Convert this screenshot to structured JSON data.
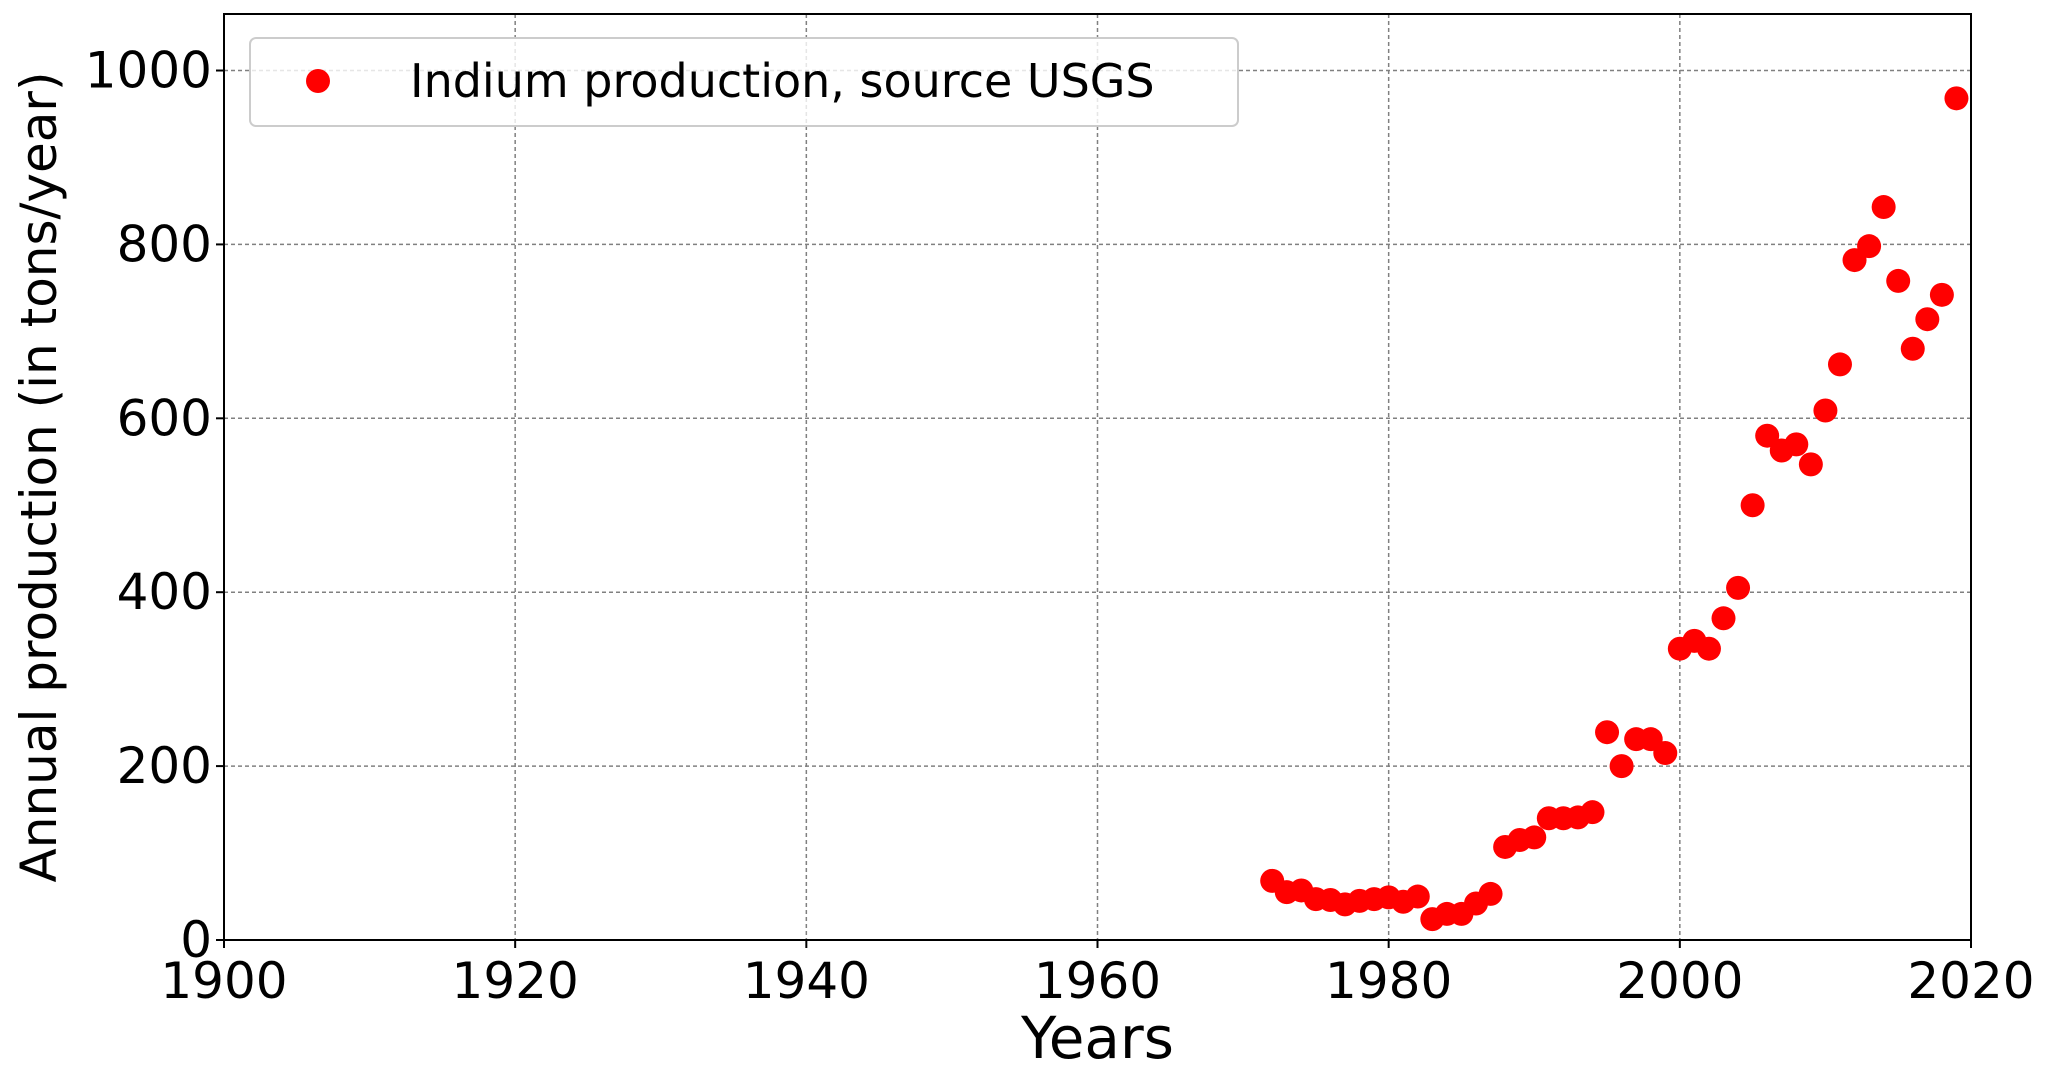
{
  "chart_data": {
    "type": "scatter",
    "xlabel": "Years",
    "ylabel": "Annual production (in tons/year)",
    "xlim": [
      1900,
      2020
    ],
    "ylim": [
      0,
      1065
    ],
    "xticks": [
      1900,
      1920,
      1940,
      1960,
      1980,
      2000,
      2020
    ],
    "yticks": [
      0,
      200,
      400,
      600,
      800,
      1000
    ],
    "grid": true,
    "legend_position": "top-left",
    "series": [
      {
        "name": "Indium production, source USGS",
        "color": "#ff0000",
        "marker": "circle",
        "x": [
          1972,
          1973,
          1974,
          1975,
          1976,
          1977,
          1978,
          1979,
          1980,
          1981,
          1982,
          1983,
          1984,
          1985,
          1986,
          1987,
          1988,
          1989,
          1990,
          1991,
          1992,
          1993,
          1994,
          1995,
          1996,
          1997,
          1998,
          1999,
          2000,
          2001,
          2002,
          2003,
          2004,
          2005,
          2006,
          2007,
          2008,
          2009,
          2010,
          2011,
          2012,
          2013,
          2014,
          2015,
          2016,
          2017,
          2018,
          2019
        ],
        "y": [
          68,
          55,
          57,
          47,
          46,
          41,
          45,
          47,
          49,
          44,
          50,
          24,
          30,
          30,
          42,
          53,
          107,
          115,
          118,
          140,
          140,
          141,
          147,
          239,
          200,
          231,
          231,
          215,
          335,
          344,
          335,
          370,
          405,
          500,
          580,
          563,
          570,
          547,
          609,
          662,
          782,
          798,
          843,
          758,
          680,
          714,
          742,
          968
        ]
      }
    ]
  }
}
